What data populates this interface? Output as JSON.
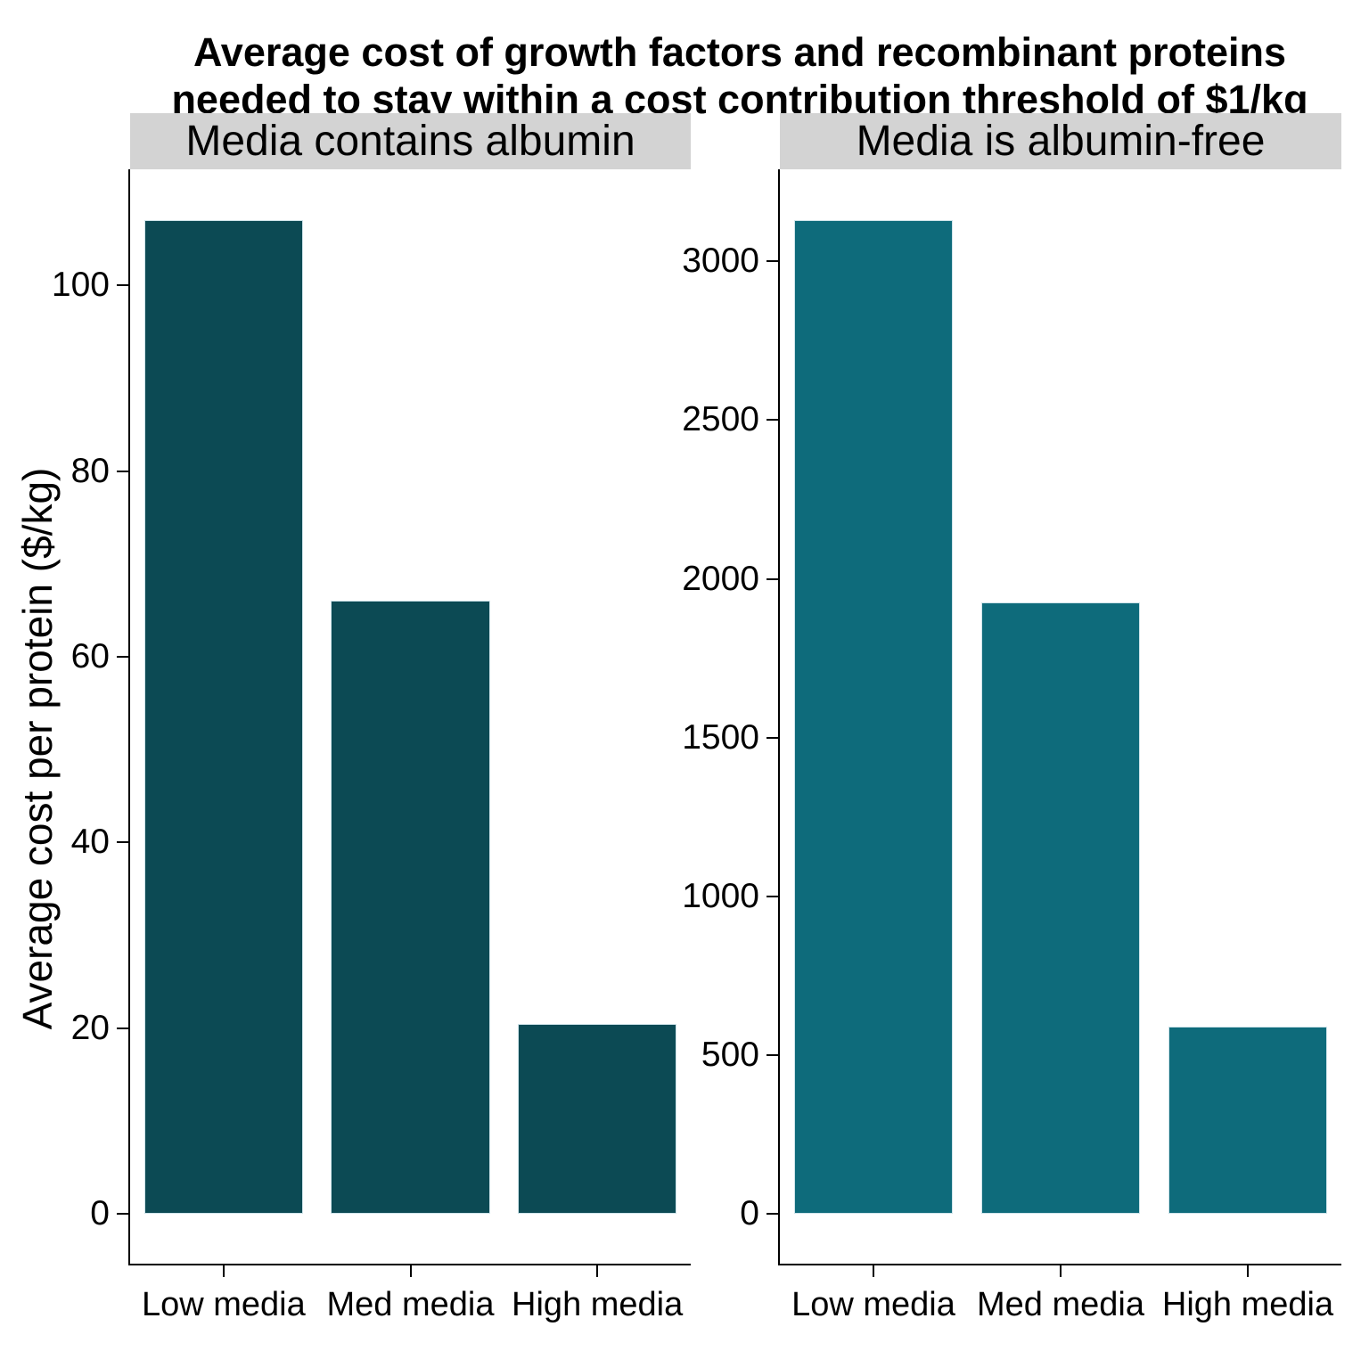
{
  "title_lines": [
    "Average cost of growth factors and recombinant proteins",
    "needed to stay within a cost contribution threshold of $1/kg"
  ],
  "chart_data": {
    "type": "bar",
    "title": "Average cost of growth factors and recombinant proteins needed to stay within a cost contribution threshold of $1/kg",
    "ylabel": "Average cost per protein ($/kg)",
    "xlabel": "",
    "categories": [
      "Low media",
      "Med media",
      "High media"
    ],
    "facets": [
      {
        "label": "Media contains albumin",
        "values": [
          107,
          66,
          20.4
        ],
        "yticks": [
          0,
          20,
          40,
          60,
          80,
          100
        ],
        "ylim": [
          0,
          112.5
        ],
        "bar_color": "#0c4a54"
      },
      {
        "label": "Media is albumin-free",
        "values": [
          3130,
          1925,
          590
        ],
        "yticks": [
          0,
          500,
          1000,
          1500,
          2000,
          2500,
          3000
        ],
        "ylim": [
          0,
          3290
        ],
        "bar_color": "#0e6b7b"
      }
    ],
    "grid": false,
    "legend": "none"
  },
  "colors": {
    "strip_bg": "#d3d3d3",
    "axis": "#000000",
    "text": "#000000",
    "bar_outline": "#cfe4ea"
  }
}
